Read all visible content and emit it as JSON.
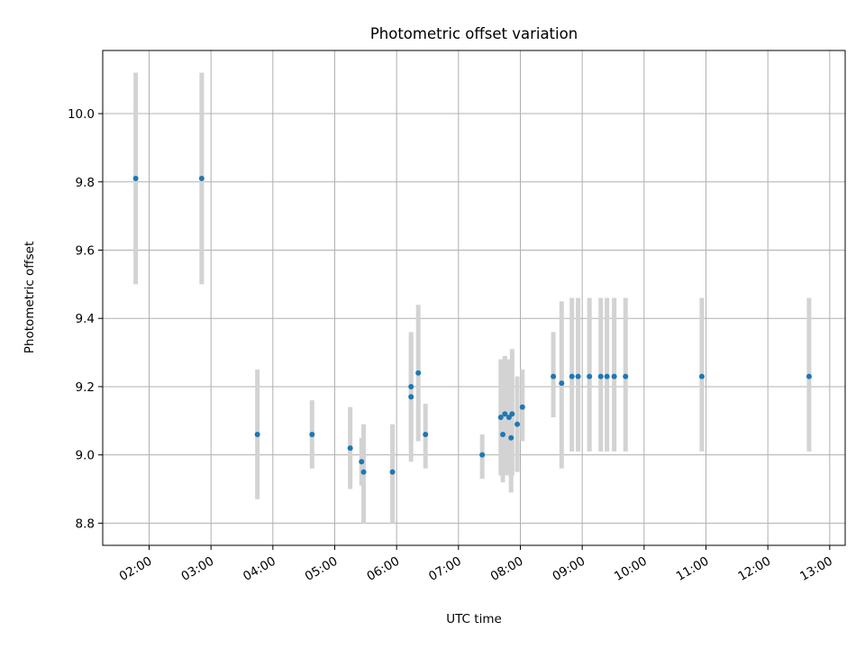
{
  "chart_data": {
    "type": "scatter",
    "title": "Photometric offset variation",
    "xlabel": "UTC time",
    "ylabel": "Photometric offset",
    "x_unit": "UTC time (HH:MM)",
    "xlim": [
      "01:15",
      "13:15"
    ],
    "ylim": [
      8.735,
      10.185
    ],
    "x_ticks": [
      "02:00",
      "03:00",
      "04:00",
      "05:00",
      "06:00",
      "07:00",
      "08:00",
      "09:00",
      "10:00",
      "11:00",
      "12:00",
      "13:00"
    ],
    "y_ticks": [
      "8.8",
      "9.0",
      "9.2",
      "9.4",
      "9.6",
      "9.8",
      "10.0"
    ],
    "grid": true,
    "marker_color": "#1f77b4",
    "errorbar_color": "#d3d3d3",
    "series": [
      {
        "points": [
          {
            "x": "01:47",
            "y": 9.81,
            "ylow": 9.5,
            "yhigh": 10.12
          },
          {
            "x": "02:51",
            "y": 9.81,
            "ylow": 9.5,
            "yhigh": 10.12
          },
          {
            "x": "03:45",
            "y": 9.06,
            "ylow": 8.87,
            "yhigh": 9.25
          },
          {
            "x": "04:38",
            "y": 9.06,
            "ylow": 8.96,
            "yhigh": 9.16
          },
          {
            "x": "05:15",
            "y": 9.02,
            "ylow": 8.9,
            "yhigh": 9.14
          },
          {
            "x": "05:26",
            "y": 8.98,
            "ylow": 8.91,
            "yhigh": 9.05
          },
          {
            "x": "05:28",
            "y": 8.95,
            "ylow": 8.8,
            "yhigh": 9.09
          },
          {
            "x": "05:56",
            "y": 8.95,
            "ylow": 8.8,
            "yhigh": 9.09
          },
          {
            "x": "06:14",
            "y": 9.2,
            "ylow": 9.04,
            "yhigh": 9.36
          },
          {
            "x": "06:14",
            "y": 9.17,
            "ylow": 8.98,
            "yhigh": 9.35
          },
          {
            "x": "06:21",
            "y": 9.24,
            "ylow": 9.04,
            "yhigh": 9.44
          },
          {
            "x": "06:28",
            "y": 9.06,
            "ylow": 8.96,
            "yhigh": 9.15
          },
          {
            "x": "07:23",
            "y": 9.0,
            "ylow": 8.93,
            "yhigh": 9.06
          },
          {
            "x": "07:41",
            "y": 9.11,
            "ylow": 8.94,
            "yhigh": 9.28
          },
          {
            "x": "07:43",
            "y": 9.06,
            "ylow": 8.92,
            "yhigh": 9.2
          },
          {
            "x": "07:45",
            "y": 9.12,
            "ylow": 8.94,
            "yhigh": 9.29
          },
          {
            "x": "07:49",
            "y": 9.11,
            "ylow": 8.94,
            "yhigh": 9.28
          },
          {
            "x": "07:51",
            "y": 9.05,
            "ylow": 8.89,
            "yhigh": 9.2
          },
          {
            "x": "07:52",
            "y": 9.12,
            "ylow": 8.94,
            "yhigh": 9.31
          },
          {
            "x": "07:57",
            "y": 9.09,
            "ylow": 8.95,
            "yhigh": 9.23
          },
          {
            "x": "08:02",
            "y": 9.14,
            "ylow": 9.04,
            "yhigh": 9.25
          },
          {
            "x": "08:32",
            "y": 9.23,
            "ylow": 9.11,
            "yhigh": 9.36
          },
          {
            "x": "08:40",
            "y": 9.21,
            "ylow": 8.96,
            "yhigh": 9.45
          },
          {
            "x": "08:50",
            "y": 9.23,
            "ylow": 9.01,
            "yhigh": 9.46
          },
          {
            "x": "08:56",
            "y": 9.23,
            "ylow": 9.01,
            "yhigh": 9.46
          },
          {
            "x": "09:07",
            "y": 9.23,
            "ylow": 9.01,
            "yhigh": 9.46
          },
          {
            "x": "09:18",
            "y": 9.23,
            "ylow": 9.01,
            "yhigh": 9.46
          },
          {
            "x": "09:24",
            "y": 9.23,
            "ylow": 9.01,
            "yhigh": 9.46
          },
          {
            "x": "09:31",
            "y": 9.23,
            "ylow": 9.01,
            "yhigh": 9.46
          },
          {
            "x": "09:42",
            "y": 9.23,
            "ylow": 9.01,
            "yhigh": 9.46
          },
          {
            "x": "10:56",
            "y": 9.23,
            "ylow": 9.01,
            "yhigh": 9.46
          },
          {
            "x": "12:40",
            "y": 9.23,
            "ylow": 9.01,
            "yhigh": 9.46
          }
        ]
      }
    ]
  }
}
